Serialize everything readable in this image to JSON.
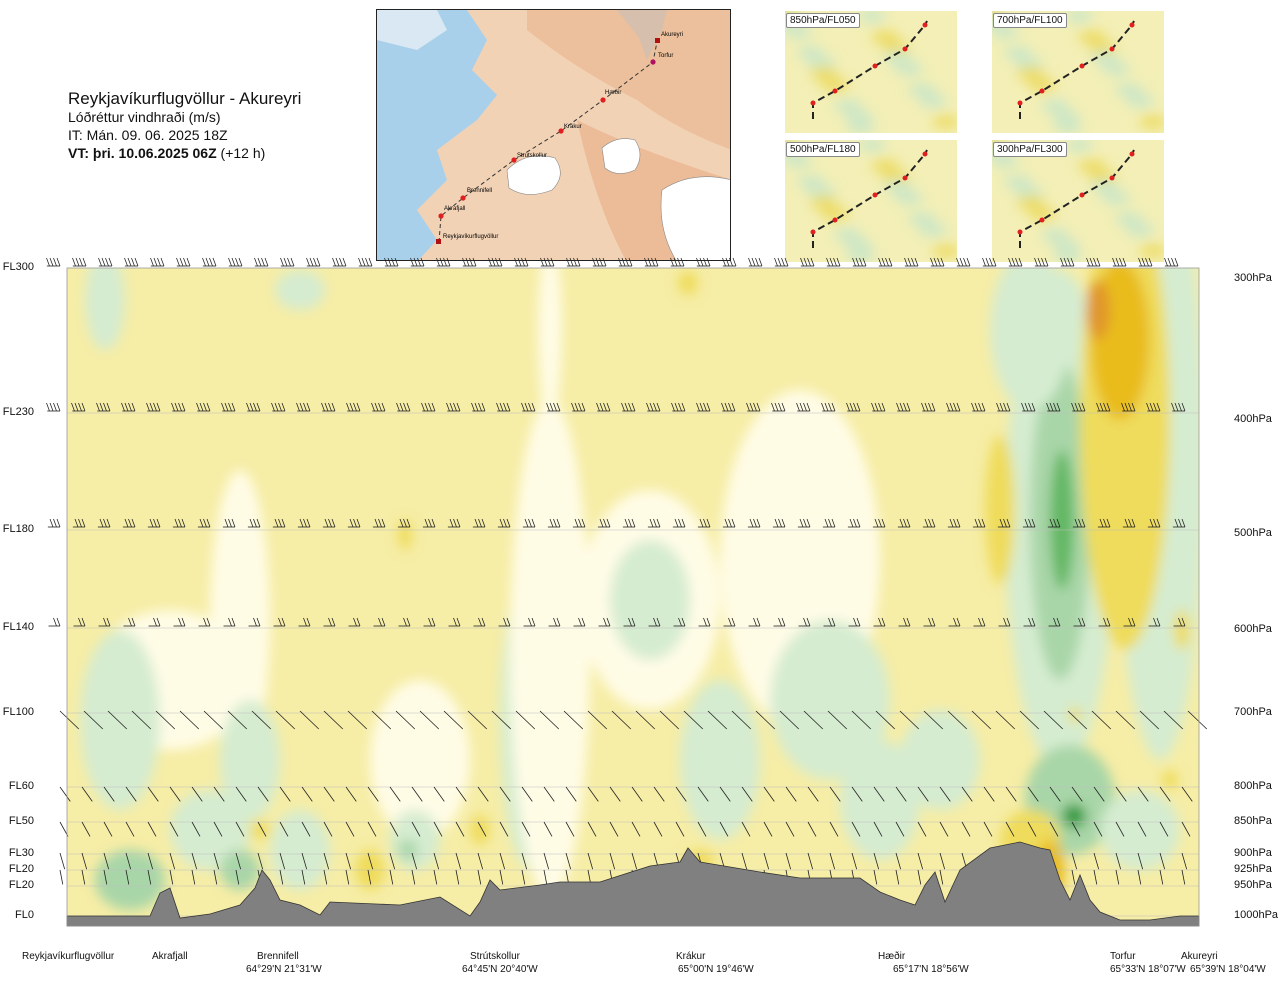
{
  "header": {
    "route": "Reykjavíkurflugvöllur - Akureyri",
    "variable": "Lóðréttur vindhraði (m/s)",
    "issued": "IT: Mán. 09. 06. 2025 18Z",
    "valid_bold": "VT: þri. 10.06.2025 06Z",
    "valid_suffix": " (+12 h)"
  },
  "map": {
    "stations": [
      "Akureyri",
      "Torfur",
      "Hæðir",
      "Krákur",
      "Strútskollur",
      "Brennifell",
      "Akrafjall",
      "Reykjavíkurflugvöllur"
    ]
  },
  "insets": [
    {
      "label": "850hPa/FL050"
    },
    {
      "label": "700hPa/FL100"
    },
    {
      "label": "500hPa/FL180"
    },
    {
      "label": "300hPa/FL300"
    }
  ],
  "chart_data": {
    "type": "heatmap",
    "title": "Lóðréttur vindhraði (m/s)",
    "levels_left": [
      "FL300",
      "FL230",
      "FL180",
      "FL140",
      "FL100",
      "FL60",
      "FL50",
      "FL30",
      "FL20",
      "FL20",
      "FL0"
    ],
    "levels_right": [
      "300hPa",
      "400hPa",
      "500hPa",
      "600hPa",
      "700hPa",
      "800hPa",
      "850hPa",
      "900hPa",
      "925hPa",
      "950hPa",
      "1000hPa"
    ],
    "stations": [
      {
        "name": "Reykjavíkurflugvöllur",
        "coord": ""
      },
      {
        "name": "Akrafjall",
        "coord": ""
      },
      {
        "name": "Brennifell",
        "coord": "64°29'N 21°31'W"
      },
      {
        "name": "Strútskollur",
        "coord": "64°45'N 20°40'W"
      },
      {
        "name": "Krákur",
        "coord": "65°00'N 19°46'W"
      },
      {
        "name": "Hæðir",
        "coord": "65°17'N 18°56'W"
      },
      {
        "name": "Torfur",
        "coord": "65°33'N 18°07'W"
      },
      {
        "name": "Akureyri",
        "coord": "65°39'N 18°04'W"
      }
    ],
    "colors": {
      "base": "#f6eda6",
      "weak_down": "#fffce6",
      "down1": "#d5ecd0",
      "down2": "#a9d6a8",
      "down3": "#62b763",
      "down4": "#2e9a3e",
      "up1": "#efdc5c",
      "up2": "#e9bc1d",
      "up3": "#e0962a",
      "terrain": "#808080"
    }
  }
}
